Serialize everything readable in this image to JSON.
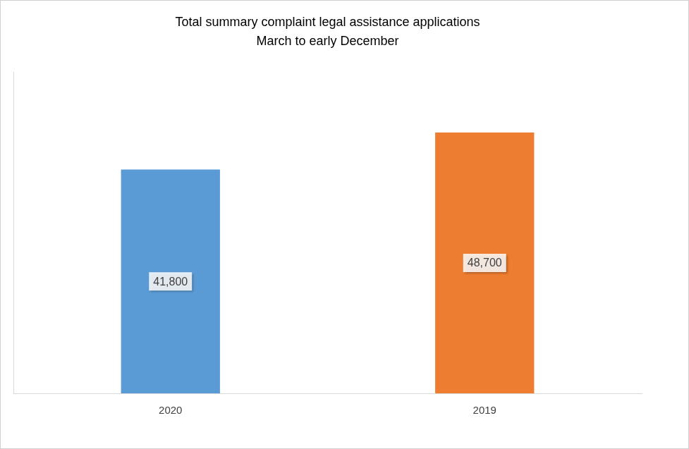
{
  "chart_data": {
    "type": "bar",
    "title": "Total summary complaint legal assistance applications",
    "subtitle": "March to early December",
    "categories": [
      "2020",
      "2019"
    ],
    "values": [
      41800,
      48700
    ],
    "value_labels": [
      "41,800",
      "48,700"
    ],
    "colors": [
      "#5b9bd5",
      "#ed7d31"
    ],
    "ylim": [
      0,
      60000
    ],
    "grid": false,
    "data_labels": true,
    "tick_labels": "x"
  }
}
